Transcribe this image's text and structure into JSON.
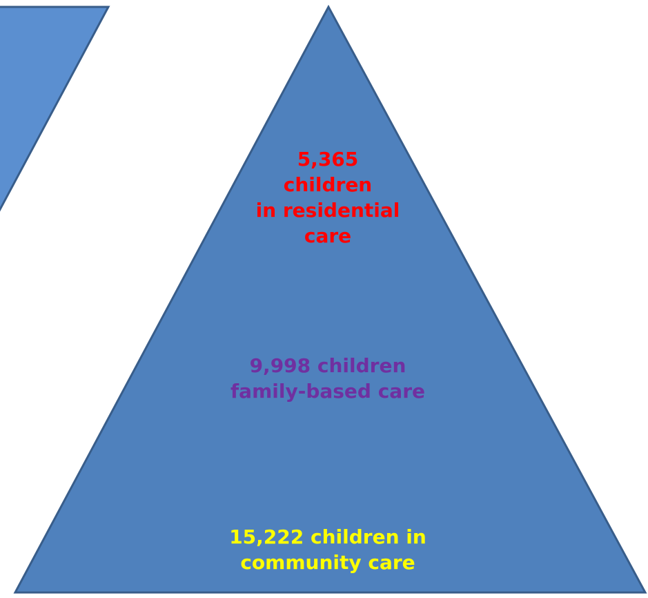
{
  "tiers": {
    "residential": {
      "lines": [
        "5,365",
        "children",
        "in residential",
        "care"
      ],
      "color": "#ff0000"
    },
    "family": {
      "lines": [
        "9,998 children",
        "family-based care"
      ],
      "color": "#7030a0"
    },
    "community": {
      "lines": [
        "15,222 children in",
        "community care"
      ],
      "color": "#ffff00"
    }
  },
  "colors": {
    "pyramid_fill": "#4f81bd",
    "pyramid_stroke": "#385d8a",
    "side_shape_fill": "#5b8fd0",
    "background": "#ffffff"
  }
}
